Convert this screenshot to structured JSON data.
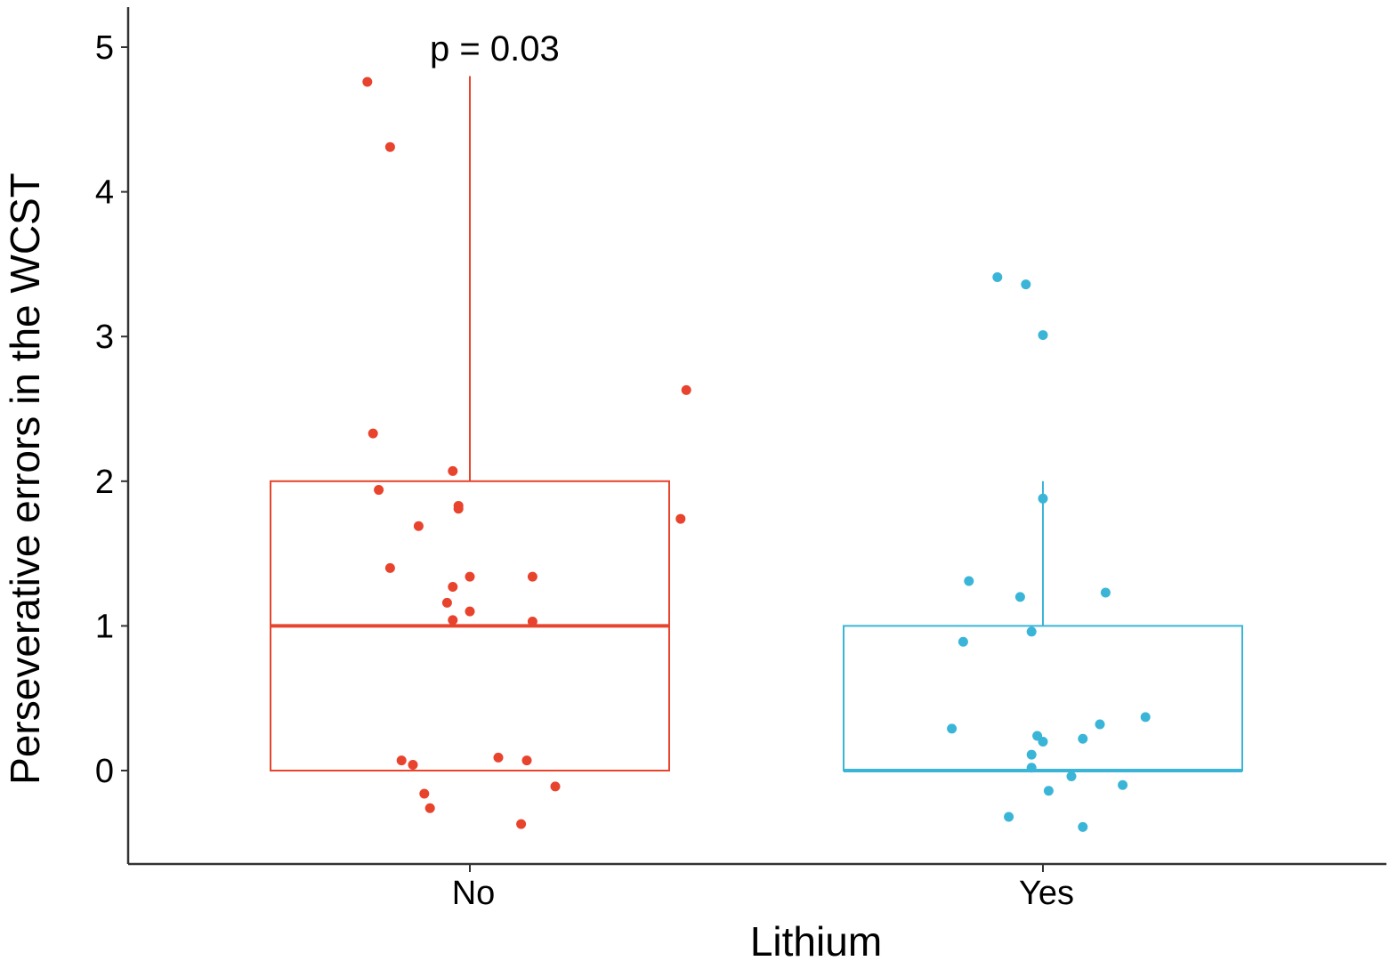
{
  "chart_data": {
    "type": "boxplot",
    "xlabel": "Lithium",
    "ylabel": "Perseverative errors in the WCST",
    "categories": [
      "No",
      "Yes"
    ],
    "ylim": [
      -0.62,
      5.3
    ],
    "yticks": [
      0,
      1,
      2,
      3,
      4,
      5
    ],
    "grid": false,
    "legend": "none",
    "annotation": "p = 0.03",
    "colors": {
      "No": "#e8432d",
      "Yes": "#3ab5d8"
    },
    "boxes": [
      {
        "category": "No",
        "lower_whisker": 0,
        "q1": 0,
        "median": 1,
        "q3": 2,
        "upper_whisker": 4.8
      },
      {
        "category": "Yes",
        "lower_whisker": 0,
        "q1": 0,
        "median": 0,
        "q3": 1,
        "upper_whisker": 2
      }
    ],
    "series": [
      {
        "category": "No",
        "points": [
          [
            -0.18,
            4.76
          ],
          [
            -0.14,
            4.31
          ],
          [
            0.38,
            2.63
          ],
          [
            -0.17,
            2.33
          ],
          [
            -0.03,
            2.07
          ],
          [
            -0.16,
            1.94
          ],
          [
            -0.02,
            1.83
          ],
          [
            -0.02,
            1.81
          ],
          [
            -0.09,
            1.69
          ],
          [
            0.37,
            1.74
          ],
          [
            -0.14,
            1.4
          ],
          [
            0.0,
            1.34
          ],
          [
            0.11,
            1.34
          ],
          [
            -0.03,
            1.27
          ],
          [
            -0.04,
            1.16
          ],
          [
            0.0,
            1.1
          ],
          [
            -0.03,
            1.04
          ],
          [
            0.11,
            1.03
          ],
          [
            -0.12,
            0.07
          ],
          [
            -0.1,
            0.04
          ],
          [
            0.05,
            0.09
          ],
          [
            0.1,
            0.07
          ],
          [
            0.15,
            -0.11
          ],
          [
            -0.08,
            -0.16
          ],
          [
            -0.07,
            -0.26
          ],
          [
            0.09,
            -0.37
          ]
        ]
      },
      {
        "category": "Yes",
        "points": [
          [
            -0.08,
            3.41
          ],
          [
            -0.03,
            3.36
          ],
          [
            0.0,
            3.01
          ],
          [
            0.0,
            1.88
          ],
          [
            -0.13,
            1.31
          ],
          [
            -0.04,
            1.2
          ],
          [
            0.11,
            1.23
          ],
          [
            -0.02,
            0.96
          ],
          [
            -0.14,
            0.89
          ],
          [
            -0.16,
            0.29
          ],
          [
            0.18,
            0.37
          ],
          [
            0.1,
            0.32
          ],
          [
            -0.01,
            0.24
          ],
          [
            0.0,
            0.2
          ],
          [
            0.07,
            0.22
          ],
          [
            -0.02,
            0.11
          ],
          [
            -0.02,
            0.02
          ],
          [
            0.05,
            -0.04
          ],
          [
            0.14,
            -0.1
          ],
          [
            0.01,
            -0.14
          ],
          [
            -0.06,
            -0.32
          ],
          [
            0.07,
            -0.39
          ]
        ]
      }
    ]
  }
}
